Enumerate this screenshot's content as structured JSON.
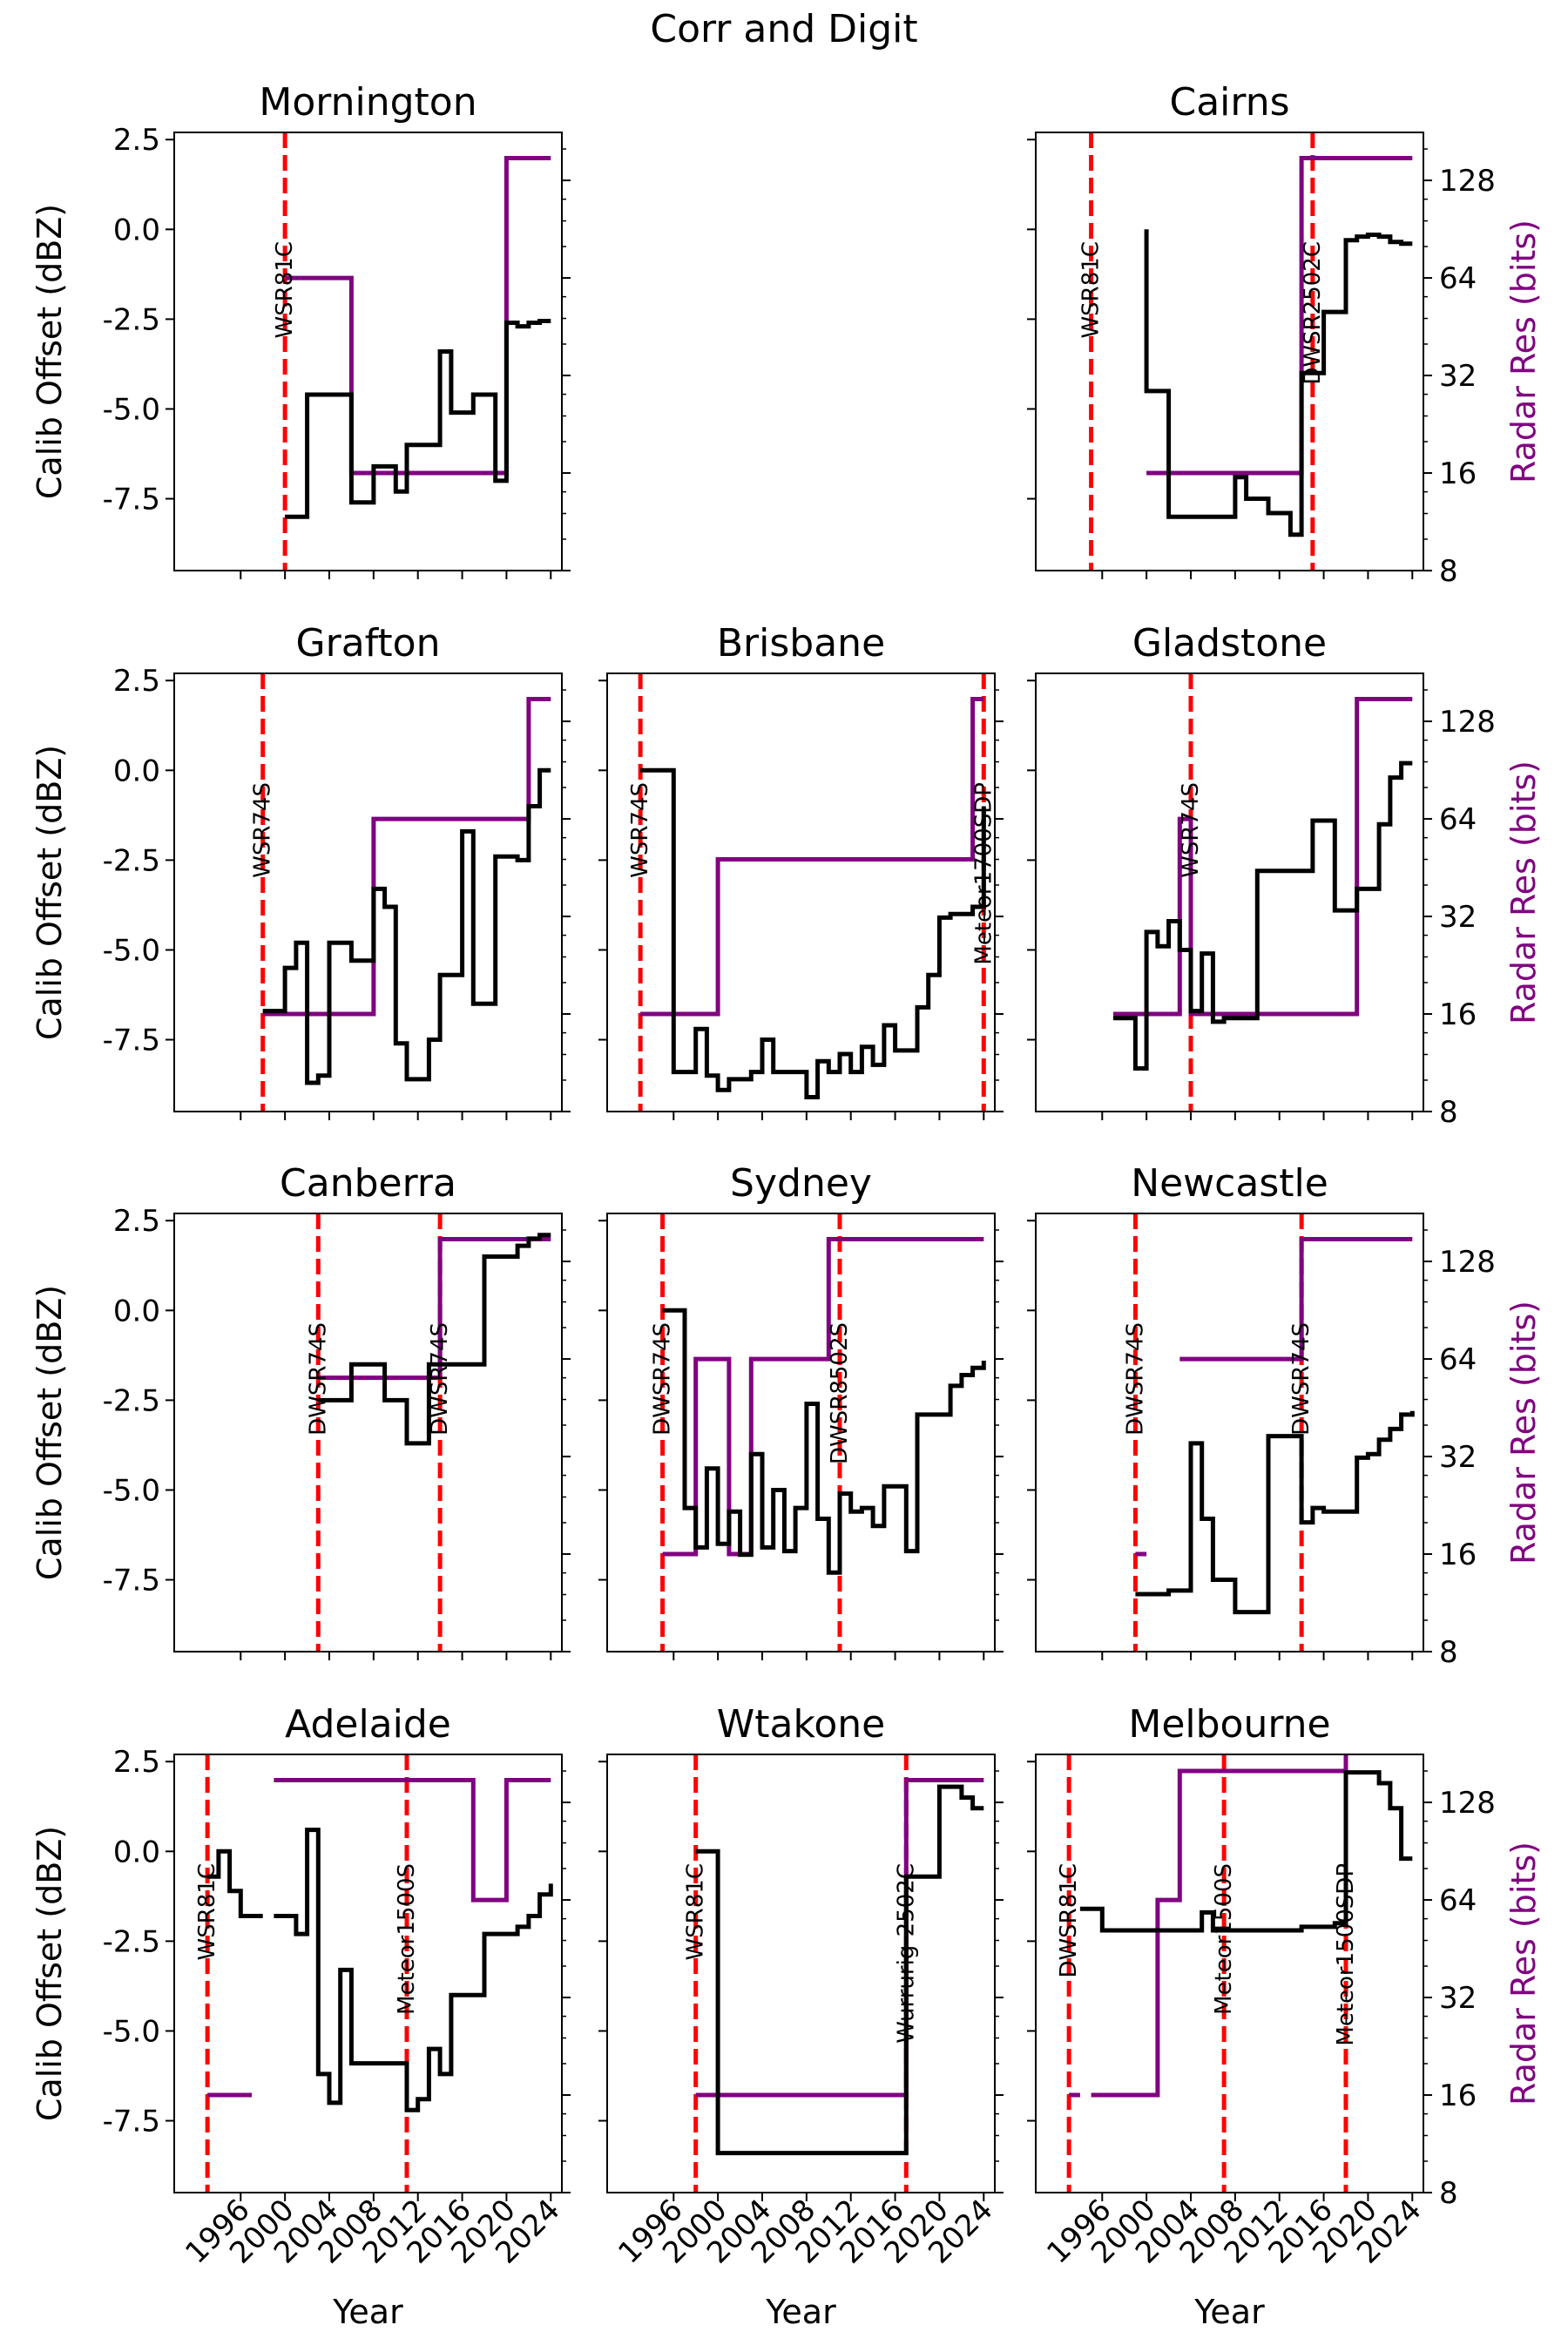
{
  "colors": {
    "calib": "#000000",
    "res": "#800080",
    "change": "#ff0000",
    "axes": "#000000"
  },
  "chart_data": {
    "type": "line",
    "title": "Corr and Digit",
    "xlabel": "Year",
    "ylabel": "Calib Offset (dBZ)",
    "ylabel_right": "Radar Res (bits)",
    "xlim": [
      1990,
      2025
    ],
    "ylim": [
      -9.5,
      2.7
    ],
    "ylim_right": [
      8,
      180
    ],
    "right_scale": "log2",
    "xticks": [
      "1996",
      "2000",
      "2004",
      "2008",
      "2012",
      "2016",
      "2020",
      "2024"
    ],
    "yticks": [
      "2.5",
      "0.0",
      "-2.5",
      "-5.0",
      "-7.5"
    ],
    "yticks_right": [
      "8",
      "16",
      "32",
      "64",
      "128"
    ],
    "grid": false,
    "panels": [
      {
        "name": "Mornington",
        "changes": [
          {
            "year": 2000,
            "label": "WSR81C"
          }
        ],
        "calib": [
          [
            2000,
            -8.0
          ],
          [
            2002,
            -4.6
          ],
          [
            2006,
            -7.6
          ],
          [
            2008,
            -6.6
          ],
          [
            2010,
            -7.3
          ],
          [
            2011,
            -6.0
          ],
          [
            2014,
            -3.4
          ],
          [
            2015,
            -5.1
          ],
          [
            2017,
            -4.6
          ],
          [
            2019,
            -7.0
          ],
          [
            2020,
            -2.6
          ],
          [
            2021,
            -2.7
          ],
          [
            2022,
            -2.6
          ],
          [
            2023,
            -2.55
          ],
          [
            2024,
            -2.55
          ]
        ],
        "res": [
          [
            2000,
            64
          ],
          [
            2006,
            16
          ],
          [
            2020,
            150
          ],
          [
            2024,
            150
          ]
        ]
      },
      {
        "name": "Cairns",
        "changes": [
          {
            "year": 1995,
            "label": "WSR81C"
          },
          {
            "year": 2015,
            "label": "DWSR2502C"
          }
        ],
        "calib": [
          [
            2000,
            0.0
          ],
          [
            2000,
            -4.5
          ],
          [
            2002,
            -8.0
          ],
          [
            2008,
            -6.9
          ],
          [
            2009,
            -7.5
          ],
          [
            2011,
            -7.9
          ],
          [
            2013,
            -8.5
          ],
          [
            2014,
            -4.0
          ],
          [
            2016,
            -2.3
          ],
          [
            2018,
            -0.3
          ],
          [
            2019,
            -0.2
          ],
          [
            2020,
            -0.15
          ],
          [
            2021,
            -0.2
          ],
          [
            2022,
            -0.35
          ],
          [
            2023,
            -0.4
          ],
          [
            2024,
            -0.4
          ]
        ],
        "res": [
          [
            2000,
            16
          ],
          [
            2014,
            150
          ],
          [
            2024,
            150
          ]
        ]
      },
      {
        "name": "Grafton",
        "changes": [
          {
            "year": 1998,
            "label": "WSR74S"
          }
        ],
        "calib": [
          [
            1998,
            -6.7
          ],
          [
            2000,
            -5.5
          ],
          [
            2001,
            -4.8
          ],
          [
            2002,
            -8.7
          ],
          [
            2003,
            -8.5
          ],
          [
            2004,
            -4.8
          ],
          [
            2006,
            -5.3
          ],
          [
            2008,
            -3.3
          ],
          [
            2009,
            -3.8
          ],
          [
            2010,
            -7.6
          ],
          [
            2011,
            -8.6
          ],
          [
            2013,
            -7.5
          ],
          [
            2014,
            -5.7
          ],
          [
            2016,
            -1.7
          ],
          [
            2017,
            -6.5
          ],
          [
            2019,
            -2.4
          ],
          [
            2021,
            -2.5
          ],
          [
            2022,
            -1.0
          ],
          [
            2023,
            0.0
          ],
          [
            2024,
            0.0
          ]
        ],
        "res": [
          [
            1998,
            16
          ],
          [
            2008,
            64
          ],
          [
            2022,
            150
          ],
          [
            2024,
            150
          ]
        ]
      },
      {
        "name": "Brisbane",
        "changes": [
          {
            "year": 1993,
            "label": "WSR74S"
          },
          {
            "year": 2024,
            "label": "Meteor1700SDP"
          }
        ],
        "calib": [
          [
            1993,
            0.0
          ],
          [
            1996,
            -8.4
          ],
          [
            1998,
            -7.2
          ],
          [
            1999,
            -8.5
          ],
          [
            2000,
            -8.9
          ],
          [
            2001,
            -8.6
          ],
          [
            2003,
            -8.4
          ],
          [
            2004,
            -7.5
          ],
          [
            2005,
            -8.4
          ],
          [
            2008,
            -9.1
          ],
          [
            2009,
            -8.1
          ],
          [
            2010,
            -8.4
          ],
          [
            2011,
            -7.9
          ],
          [
            2012,
            -8.4
          ],
          [
            2013,
            -7.7
          ],
          [
            2014,
            -8.2
          ],
          [
            2015,
            -7.1
          ],
          [
            2016,
            -7.8
          ],
          [
            2018,
            -6.6
          ],
          [
            2019,
            -5.7
          ],
          [
            2020,
            -4.1
          ],
          [
            2021,
            -4.0
          ],
          [
            2023,
            -3.8
          ],
          [
            2024,
            -1.0
          ]
        ],
        "res": [
          [
            1993,
            16
          ],
          [
            2000,
            48
          ],
          [
            2023,
            150
          ],
          [
            2024,
            150
          ]
        ]
      },
      {
        "name": "Gladstone",
        "changes": [
          {
            "year": 2004,
            "label": "WSR74S"
          }
        ],
        "calib": [
          [
            1997,
            -6.9
          ],
          [
            1999,
            -8.3
          ],
          [
            2000,
            -4.5
          ],
          [
            2001,
            -4.9
          ],
          [
            2002,
            -4.2
          ],
          [
            2003,
            -5.0
          ],
          [
            2004,
            -6.7
          ],
          [
            2005,
            -5.1
          ],
          [
            2006,
            -7.0
          ],
          [
            2007,
            -6.9
          ],
          [
            2010,
            -2.8
          ],
          [
            2015,
            -1.4
          ],
          [
            2017,
            -3.9
          ],
          [
            2019,
            -3.3
          ],
          [
            2021,
            -1.5
          ],
          [
            2022,
            -0.2
          ],
          [
            2023,
            0.2
          ],
          [
            2024,
            0.2
          ]
        ],
        "res": [
          [
            1997,
            16
          ],
          [
            2003,
            64
          ],
          [
            2004,
            16
          ],
          [
            2019,
            150
          ],
          [
            2024,
            150
          ]
        ]
      },
      {
        "name": "Canberra",
        "changes": [
          {
            "year": 2003,
            "label": "DWSR74S"
          },
          {
            "year": 2014,
            "label": "DWSR74S"
          }
        ],
        "calib": [
          [
            2003,
            -2.5
          ],
          [
            2006,
            -1.5
          ],
          [
            2009,
            -2.5
          ],
          [
            2011,
            -3.7
          ],
          [
            2013,
            -1.5
          ],
          [
            2014,
            -1.5
          ],
          [
            2018,
            1.5
          ],
          [
            2021,
            1.8
          ],
          [
            2022,
            2.0
          ],
          [
            2023,
            2.1
          ],
          [
            2024,
            2.1
          ]
        ],
        "res": [
          [
            2003,
            56
          ],
          [
            2014,
            150
          ],
          [
            2024,
            150
          ]
        ]
      },
      {
        "name": "Sydney",
        "changes": [
          {
            "year": 1995,
            "label": "DWSR74S"
          },
          {
            "year": 2011,
            "label": "DWSR8502S"
          }
        ],
        "calib": [
          [
            1995,
            0.0
          ],
          [
            1997,
            -5.5
          ],
          [
            1998,
            -6.6
          ],
          [
            1999,
            -4.4
          ],
          [
            2000,
            -6.5
          ],
          [
            2001,
            -5.6
          ],
          [
            2002,
            -6.8
          ],
          [
            2003,
            -4.0
          ],
          [
            2004,
            -6.6
          ],
          [
            2005,
            -5.0
          ],
          [
            2006,
            -6.7
          ],
          [
            2007,
            -5.5
          ],
          [
            2008,
            -2.6
          ],
          [
            2009,
            -5.8
          ],
          [
            2010,
            -7.3
          ],
          [
            2011,
            -5.1
          ],
          [
            2012,
            -5.6
          ],
          [
            2013,
            -5.5
          ],
          [
            2014,
            -6.0
          ],
          [
            2015,
            -4.9
          ],
          [
            2017,
            -6.7
          ],
          [
            2018,
            -2.9
          ],
          [
            2021,
            -2.1
          ],
          [
            2022,
            -1.8
          ],
          [
            2023,
            -1.6
          ],
          [
            2024,
            -1.4
          ]
        ],
        "res": [
          [
            1995,
            16
          ],
          [
            1998,
            64
          ],
          [
            2001,
            16
          ],
          [
            2003,
            64
          ],
          [
            2010,
            150
          ],
          [
            2024,
            150
          ]
        ]
      },
      {
        "name": "Newcastle",
        "changes": [
          {
            "year": 1999,
            "label": "DWSR74S"
          },
          {
            "year": 2014,
            "label": "DWSR74S"
          }
        ],
        "calib": [
          [
            1999,
            -7.9
          ],
          [
            2000,
            -7.9
          ],
          [
            2002,
            -7.8
          ],
          [
            2004,
            -3.7
          ],
          [
            2005,
            -5.8
          ],
          [
            2006,
            -7.5
          ],
          [
            2008,
            -8.4
          ],
          [
            2009,
            -8.4
          ],
          [
            2011,
            -3.5
          ],
          [
            2013,
            -3.5
          ],
          [
            2014,
            -5.9
          ],
          [
            2015,
            -5.5
          ],
          [
            2016,
            -5.6
          ],
          [
            2019,
            -4.1
          ],
          [
            2020,
            -4.0
          ],
          [
            2021,
            -3.6
          ],
          [
            2022,
            -3.3
          ],
          [
            2023,
            -2.9
          ],
          [
            2024,
            -2.8
          ]
        ],
        "res": [
          [
            1999,
            16
          ],
          [
            2000,
            null
          ],
          [
            2003,
            64
          ],
          [
            2014,
            150
          ],
          [
            2024,
            150
          ]
        ]
      },
      {
        "name": "Adelaide",
        "changes": [
          {
            "year": 1993,
            "label": "WSR81C"
          },
          {
            "year": 2011,
            "label": "Meteor1500S"
          }
        ],
        "calib": [
          [
            1993,
            -0.7
          ],
          [
            1994,
            0.0
          ],
          [
            1995,
            -1.1
          ],
          [
            1996,
            -1.8
          ],
          [
            1998,
            null
          ],
          [
            1999,
            -1.8
          ],
          [
            2001,
            -2.3
          ],
          [
            2002,
            0.6
          ],
          [
            2003,
            -6.2
          ],
          [
            2004,
            -7.0
          ],
          [
            2005,
            -3.3
          ],
          [
            2006,
            -5.9
          ],
          [
            2011,
            -7.2
          ],
          [
            2012,
            -6.9
          ],
          [
            2013,
            -5.5
          ],
          [
            2014,
            -6.2
          ],
          [
            2015,
            -4.0
          ],
          [
            2018,
            -2.3
          ],
          [
            2021,
            -2.1
          ],
          [
            2022,
            -1.8
          ],
          [
            2023,
            -1.2
          ],
          [
            2024,
            -0.9
          ]
        ],
        "res": [
          [
            1993,
            16
          ],
          [
            1997,
            null
          ],
          [
            1999,
            150
          ],
          [
            2017,
            64
          ],
          [
            2020,
            150
          ],
          [
            2024,
            150
          ]
        ]
      },
      {
        "name": "Wtakone",
        "changes": [
          {
            "year": 1998,
            "label": "WSR81C"
          },
          {
            "year": 2017,
            "label": "Wurrurig-2502C"
          }
        ],
        "calib": [
          [
            1998,
            0.0
          ],
          [
            2000,
            -8.4
          ],
          [
            2017,
            -0.7
          ],
          [
            2020,
            1.8
          ],
          [
            2022,
            1.5
          ],
          [
            2023,
            1.2
          ],
          [
            2024,
            1.2
          ]
        ],
        "res": [
          [
            1998,
            16
          ],
          [
            2017,
            150
          ],
          [
            2024,
            150
          ]
        ]
      },
      {
        "name": "Melbourne",
        "changes": [
          {
            "year": 1993,
            "label": "DWSR81C"
          },
          {
            "year": 2007,
            "label": "Meteor1500S"
          },
          {
            "year": 2018,
            "label": "Meteor1500SDP"
          }
        ],
        "calib": [
          [
            1994,
            -1.6
          ],
          [
            1996,
            -2.2
          ],
          [
            2005,
            -1.7
          ],
          [
            2006,
            -2.2
          ],
          [
            2014,
            -2.1
          ],
          [
            2017,
            -2.0
          ],
          [
            2018,
            2.2
          ],
          [
            2021,
            1.9
          ],
          [
            2022,
            1.2
          ],
          [
            2023,
            -0.2
          ],
          [
            2024,
            -0.2
          ]
        ],
        "res": [
          [
            1993,
            16
          ],
          [
            1994,
            null
          ],
          [
            1995,
            16
          ],
          [
            2001,
            64
          ],
          [
            2003,
            160
          ],
          [
            2018,
            190
          ],
          [
            2024,
            190
          ]
        ]
      }
    ]
  }
}
